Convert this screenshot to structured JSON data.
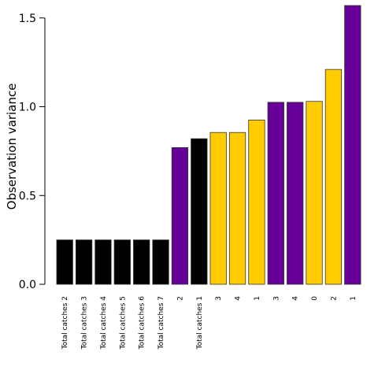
{
  "chart_data": {
    "type": "bar",
    "ylabel": "Observation variance",
    "xlabel": "",
    "ylim": [
      0,
      1.57
    ],
    "yticks": [
      "0.0",
      "0.5",
      "1.0",
      "1.5"
    ],
    "grid": false,
    "categories": [
      "Total catches 2",
      "Total catches 3",
      "Total catches 4",
      "Total catches 5",
      "Total catches 6",
      "Total catches 7",
      "2",
      "Total catches 1",
      "3",
      "4",
      "1",
      "3",
      "4",
      "0",
      "2",
      "1"
    ],
    "values": [
      0.25,
      0.25,
      0.25,
      0.25,
      0.25,
      0.25,
      0.77,
      0.82,
      0.855,
      0.855,
      0.925,
      1.025,
      1.025,
      1.03,
      1.21,
      1.57
    ],
    "bar_colors": [
      "#000000",
      "#000000",
      "#000000",
      "#000000",
      "#000000",
      "#000000",
      "#660099",
      "#000000",
      "#ffcc00",
      "#ffcc00",
      "#ffcc00",
      "#660099",
      "#660099",
      "#ffcc00",
      "#ffcc00",
      "#660099"
    ]
  }
}
